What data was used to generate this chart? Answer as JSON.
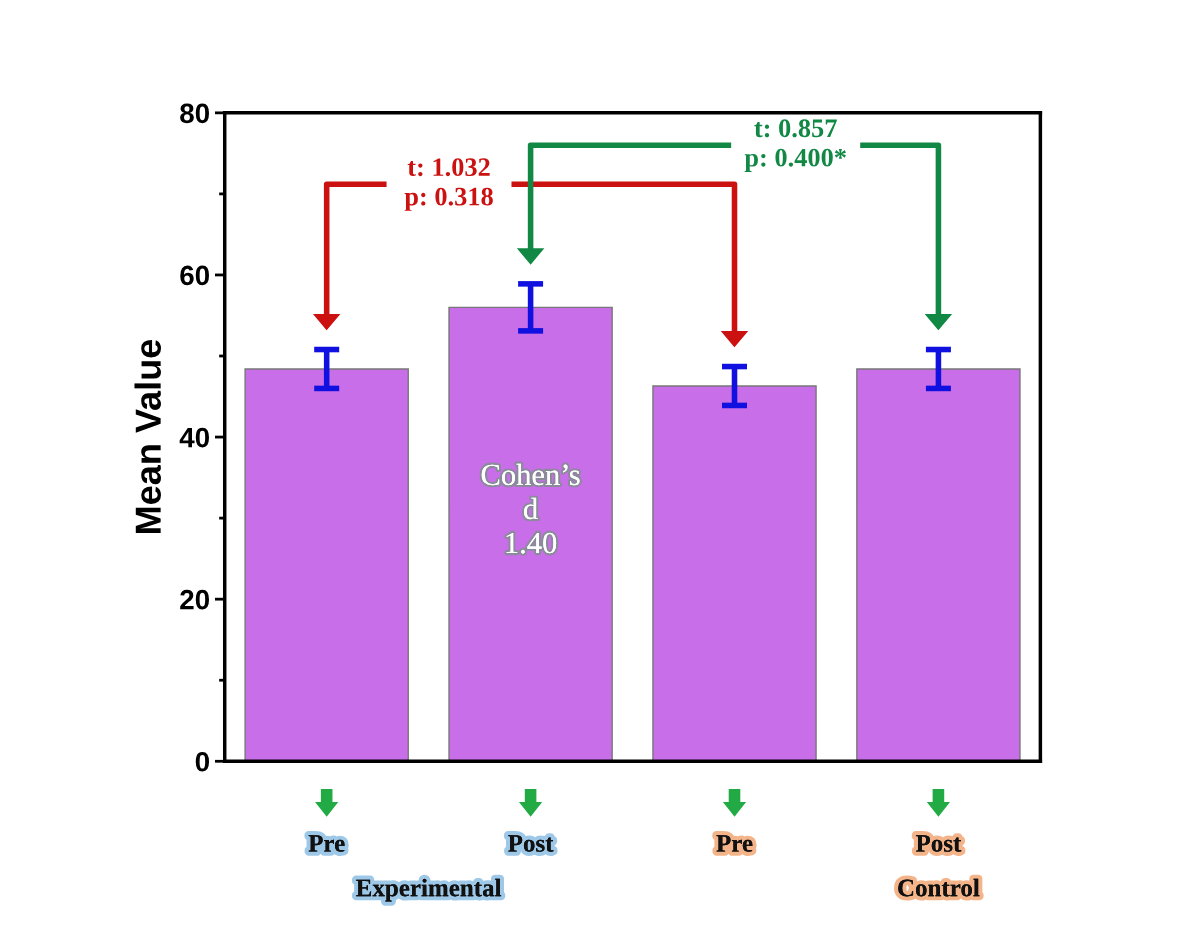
{
  "chart_data": {
    "type": "bar",
    "ylabel": "Mean Value",
    "categories": [
      "Pre",
      "Post",
      "Pre",
      "Post"
    ],
    "values": [
      48.4,
      56.0,
      46.3,
      48.4
    ],
    "errors": [
      2.4,
      2.9,
      2.4,
      2.4
    ],
    "color": "#c86ee8",
    "ylim": [
      0,
      80
    ],
    "yticks": [
      0,
      20,
      40,
      60,
      80
    ],
    "grid": false,
    "annotations": [
      "t: 1.032\np: 0.318",
      "t: 0.857\np: 0.400*",
      "Cohen’s\nd\n1.40",
      "Experimental",
      "Control"
    ]
  }
}
